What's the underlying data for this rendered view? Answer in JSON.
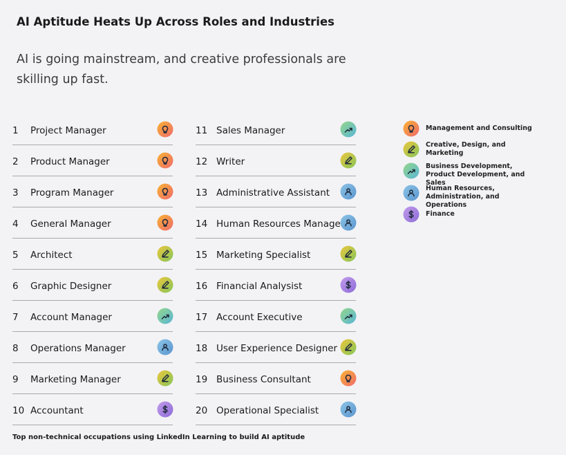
{
  "header": {
    "title": "AI Aptitude Heats Up Across Roles and Industries",
    "subtitle": "AI is going mainstream, and creative professionals are skilling up fast."
  },
  "legend": [
    {
      "label": "Management and Consulting",
      "colors": [
        "#f9b233",
        "#ef6b6b"
      ]
    },
    {
      "label": "Creative, Design, and Marketing",
      "colors": [
        "#ecc53c",
        "#86c75a"
      ]
    },
    {
      "label": "Business Development, Product Development, and Sales",
      "colors": [
        "#96d68a",
        "#58b6d6"
      ]
    },
    {
      "label": "Human Resources, Administration, and Operations",
      "colors": [
        "#8cc4e6",
        "#5b95cf"
      ]
    },
    {
      "label": "Finance",
      "colors": [
        "#c29bea",
        "#8d6cd9"
      ]
    }
  ],
  "items": [
    {
      "rank": 1,
      "name": "Project Manager",
      "category": 0
    },
    {
      "rank": 2,
      "name": "Product Manager",
      "category": 0
    },
    {
      "rank": 3,
      "name": "Program Manager",
      "category": 0
    },
    {
      "rank": 4,
      "name": "General Manager",
      "category": 0
    },
    {
      "rank": 5,
      "name": "Architect",
      "category": 1
    },
    {
      "rank": 6,
      "name": "Graphic Designer",
      "category": 1
    },
    {
      "rank": 7,
      "name": "Account Manager",
      "category": 2
    },
    {
      "rank": 8,
      "name": "Operations Manager",
      "category": 3
    },
    {
      "rank": 9,
      "name": "Marketing Manager",
      "category": 1
    },
    {
      "rank": 10,
      "name": "Accountant",
      "category": 4
    },
    {
      "rank": 11,
      "name": "Sales Manager",
      "category": 2
    },
    {
      "rank": 12,
      "name": "Writer",
      "category": 1
    },
    {
      "rank": 13,
      "name": "Administrative Assistant",
      "category": 3
    },
    {
      "rank": 14,
      "name": "Human Resources Manager",
      "category": 3
    },
    {
      "rank": 15,
      "name": "Marketing Specialist",
      "category": 1
    },
    {
      "rank": 16,
      "name": "Financial Analysist",
      "category": 4
    },
    {
      "rank": 17,
      "name": "Account Executive",
      "category": 2
    },
    {
      "rank": 18,
      "name": "User Experience Designer",
      "category": 1
    },
    {
      "rank": 19,
      "name": "Business Consultant",
      "category": 0
    },
    {
      "rank": 20,
      "name": "Operational Specialist",
      "category": 3
    }
  ],
  "footer": "Top non-technical occupations using LinkedIn Learning to build AI aptitude"
}
